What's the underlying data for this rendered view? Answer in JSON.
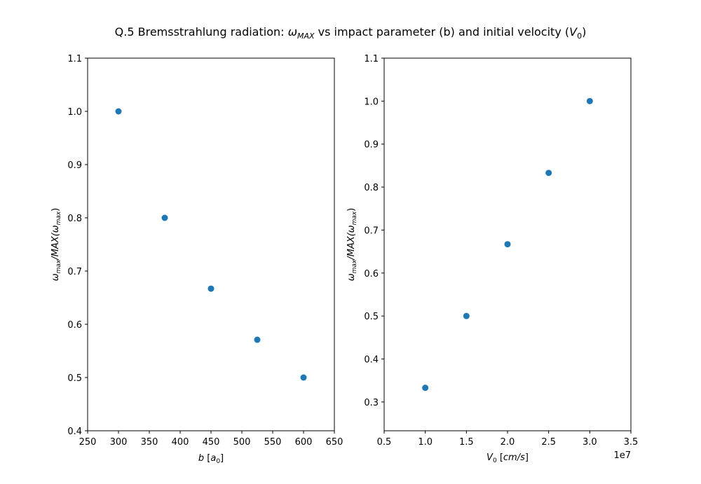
{
  "title": {
    "prefix": "Q.5 Bremsstrahlung radiation: ",
    "omega": "ω",
    "omega_sub": "MAX",
    "middle": " vs impact parameter (b) and initial velocity (",
    "v": "V",
    "v_sub": "0",
    "suffix": ")"
  },
  "chart_data": [
    {
      "type": "scatter",
      "title": "",
      "xlabel": "b [a0]",
      "ylabel": "ωmax/MAX(ωmax)",
      "xlim": [
        250,
        650
      ],
      "ylim": [
        0.4,
        1.1
      ],
      "xticks": [
        250,
        300,
        350,
        400,
        450,
        500,
        550,
        600,
        650
      ],
      "yticks": [
        0.4,
        0.5,
        0.6,
        0.7,
        0.8,
        0.9,
        1.0,
        1.1
      ],
      "xtick_labels": [
        "250",
        "300",
        "350",
        "400",
        "450",
        "500",
        "550",
        "600",
        "650"
      ],
      "ytick_labels": [
        "0.4",
        "0.5",
        "0.6",
        "0.7",
        "0.8",
        "0.9",
        "1.0",
        "1.1"
      ],
      "grid": false,
      "series": [
        {
          "x": [
            300,
            375,
            450,
            525,
            600
          ],
          "y": [
            1.0,
            0.8,
            0.667,
            0.571,
            0.5
          ],
          "color": "#1f77b4"
        }
      ]
    },
    {
      "type": "scatter",
      "title": "",
      "xlabel": "V0 [cm/s]",
      "ylabel": "ωmax/MAX(ωmax)",
      "x_offset_label": "1e7",
      "xlim": [
        0.5,
        3.5
      ],
      "ylim": [
        0.233,
        1.1
      ],
      "xticks": [
        0.5,
        1.0,
        1.5,
        2.0,
        2.5,
        3.0,
        3.5
      ],
      "yticks": [
        0.3,
        0.4,
        0.5,
        0.6,
        0.7,
        0.8,
        0.9,
        1.0,
        1.1
      ],
      "xtick_labels": [
        "0.5",
        "1.0",
        "1.5",
        "2.0",
        "2.5",
        "3.0",
        "3.5"
      ],
      "ytick_labels": [
        "0.3",
        "0.4",
        "0.5",
        "0.6",
        "0.7",
        "0.8",
        "0.9",
        "1.0",
        "1.1"
      ],
      "grid": false,
      "series": [
        {
          "x": [
            1.0,
            1.5,
            2.0,
            2.5,
            3.0
          ],
          "y": [
            0.333,
            0.5,
            0.667,
            0.833,
            1.0
          ],
          "color": "#1f77b4"
        }
      ]
    }
  ],
  "axis_label_parts": {
    "left_x": {
      "var": "b",
      "open": " [",
      "unit": "a",
      "unit_sub": "0",
      "close": "]"
    },
    "right_x": {
      "var": "V",
      "var_sub": "0",
      "open": " [",
      "unit": "cm/s",
      "close": "]"
    },
    "y": {
      "w1": "ω",
      "s1": "max",
      "mid": "/MAX(",
      "w2": "ω",
      "s2": "max",
      "close": ")"
    }
  }
}
